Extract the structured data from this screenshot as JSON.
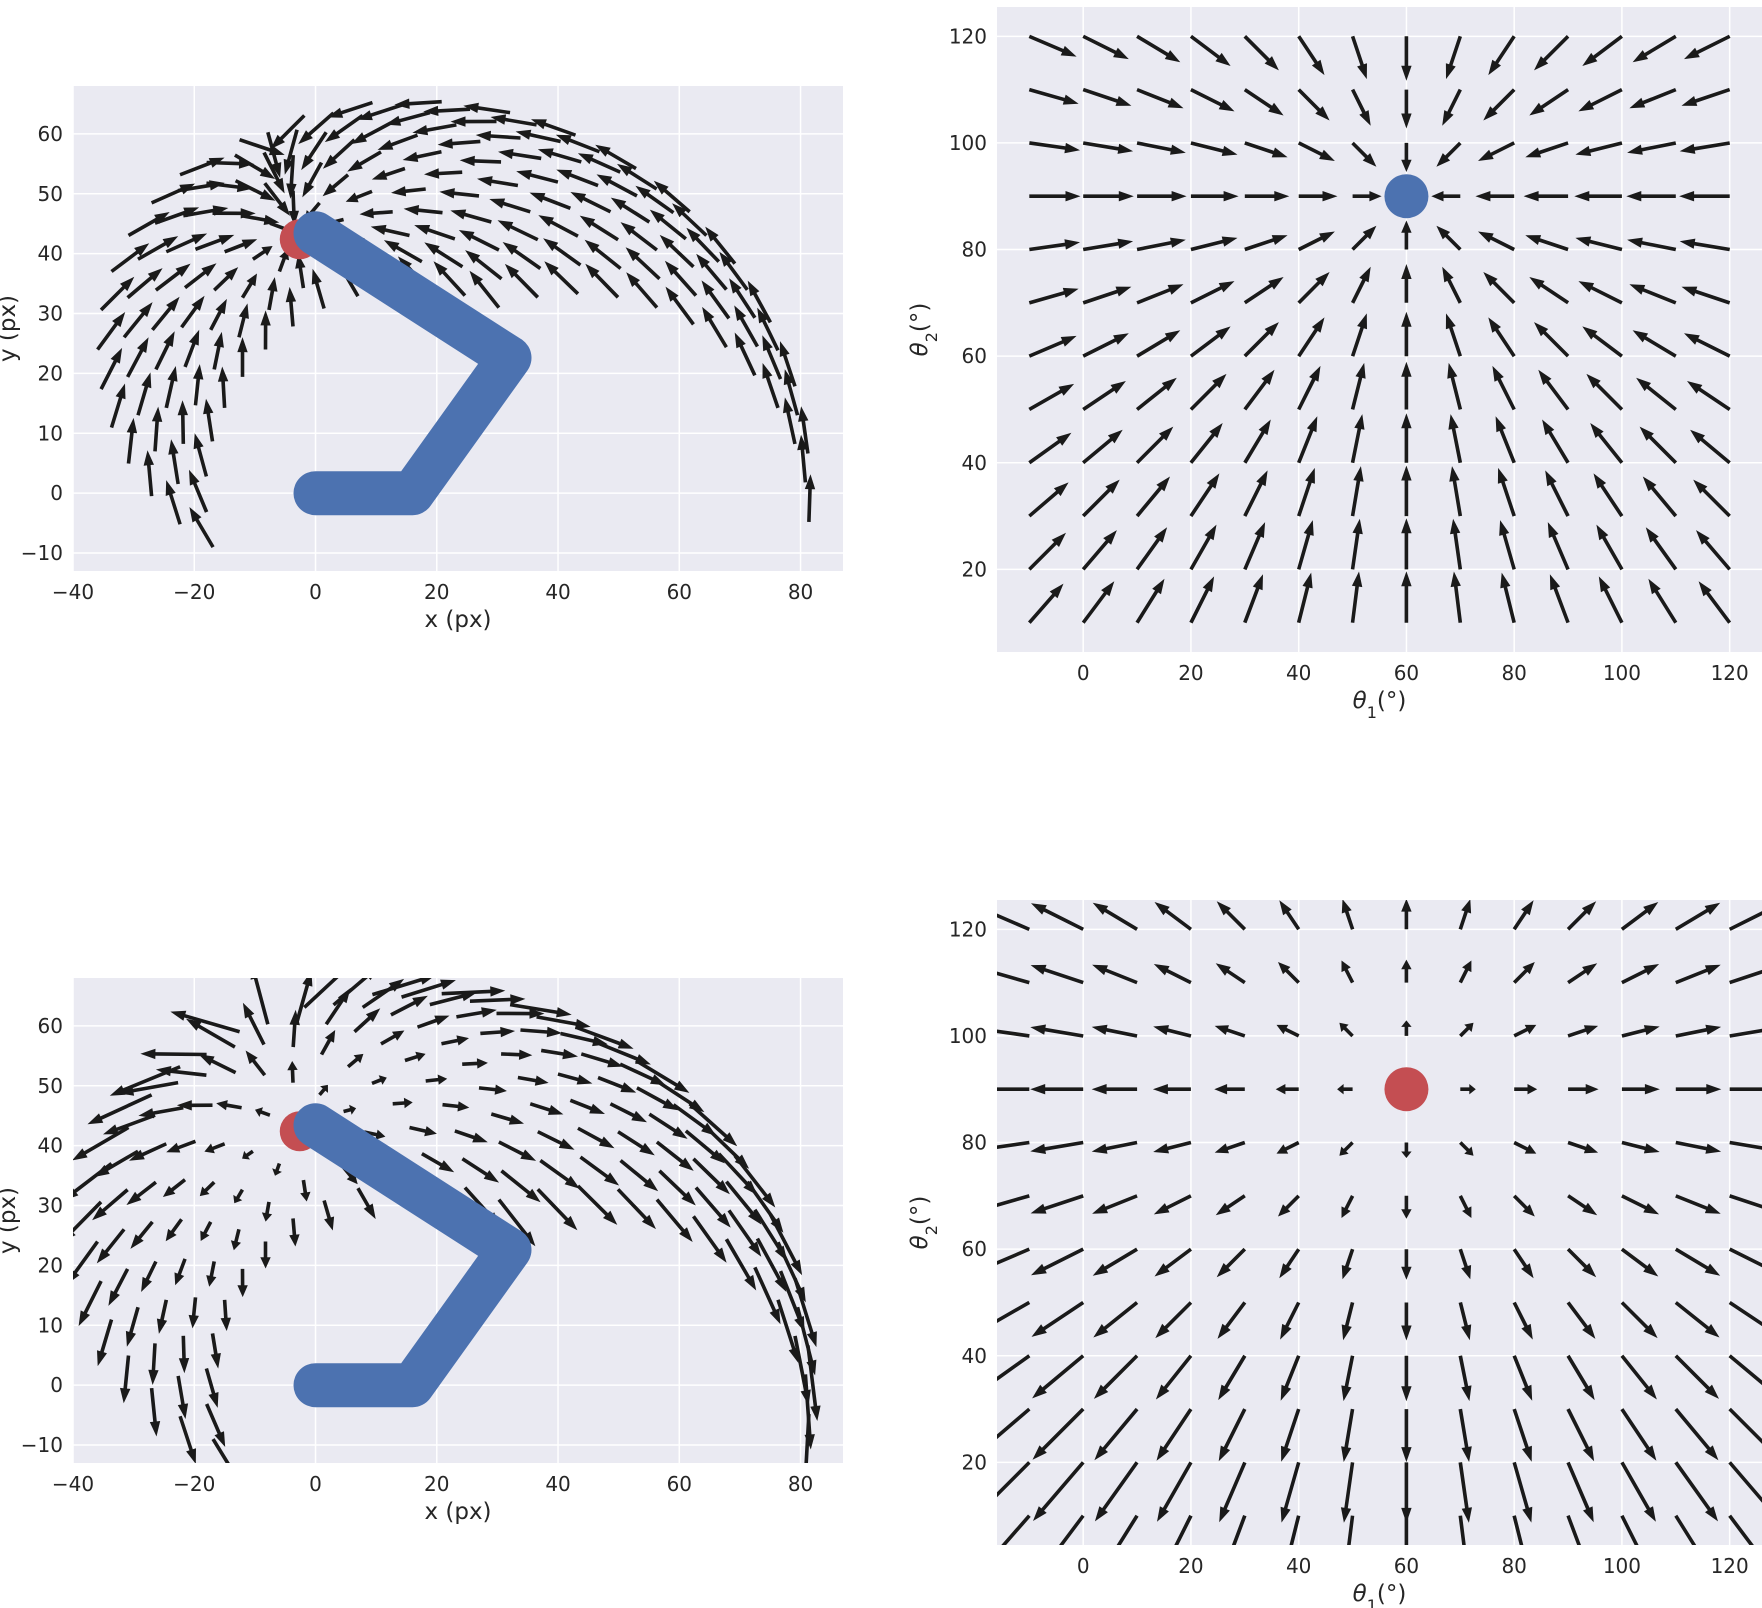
{
  "colors": {
    "background": "#eaeaf2",
    "grid": "#ffffff",
    "arm": "#4c72b0",
    "target": "#c44e52",
    "arrow": "#1a1a1a"
  },
  "chart_data": [
    {
      "id": "top-left",
      "type": "quiver",
      "xlabel": "x (px)",
      "ylabel": "y (px)",
      "xlim": [
        -40,
        87
      ],
      "ylim": [
        -13,
        68
      ],
      "xticks": [
        -40,
        -20,
        0,
        20,
        40,
        60,
        80
      ],
      "yticks": [
        -10,
        0,
        10,
        20,
        30,
        40,
        50,
        60
      ],
      "tick_labels_x": [
        "−40",
        "−20",
        "0",
        "20",
        "40",
        "60",
        "80"
      ],
      "tick_labels_y": [
        "−10",
        "0",
        "10",
        "20",
        "30",
        "40",
        "50",
        "60"
      ],
      "arm": {
        "points": [
          [
            0,
            0
          ],
          [
            16,
            0
          ],
          [
            32,
            22.6
          ],
          [
            0,
            43.4
          ]
        ],
        "color": "#4c72b0"
      },
      "target": {
        "x": -2.6,
        "y": 42.4,
        "color": "#c44e52"
      },
      "field": {
        "mapping": "arm",
        "L1": 16,
        "L2": 27.7,
        "L3": 38.1,
        "goal": [
          60,
          90
        ],
        "mode": "attract"
      }
    },
    {
      "id": "top-right",
      "type": "quiver",
      "xlabel": "θ1(°)",
      "ylabel": "θ2(°)",
      "xlim": [
        -16,
        126
      ],
      "ylim": [
        4.5,
        125.5
      ],
      "xticks": [
        0,
        20,
        40,
        60,
        80,
        100,
        120
      ],
      "yticks": [
        20,
        40,
        60,
        80,
        100,
        120
      ],
      "tick_labels_x": [
        "0",
        "20",
        "40",
        "60",
        "80",
        "100",
        "120"
      ],
      "tick_labels_y": [
        "20",
        "40",
        "60",
        "80",
        "100",
        "120"
      ],
      "target": {
        "x": 60,
        "y": 90,
        "color": "#4c72b0"
      },
      "field": {
        "mapping": "joint",
        "goal": [
          60,
          90
        ],
        "mode": "attract"
      }
    },
    {
      "id": "bottom-left",
      "type": "quiver",
      "xlabel": "x (px)",
      "ylabel": "y (px)",
      "xlim": [
        -40,
        87
      ],
      "ylim": [
        -13,
        68
      ],
      "xticks": [
        -40,
        -20,
        0,
        20,
        40,
        60,
        80
      ],
      "yticks": [
        -10,
        0,
        10,
        20,
        30,
        40,
        50,
        60
      ],
      "tick_labels_x": [
        "−40",
        "−20",
        "0",
        "20",
        "40",
        "60",
        "80"
      ],
      "tick_labels_y": [
        "−10",
        "0",
        "10",
        "20",
        "30",
        "40",
        "50",
        "60"
      ],
      "arm": {
        "points": [
          [
            0,
            0
          ],
          [
            16,
            0
          ],
          [
            32,
            22.6
          ],
          [
            0,
            43.4
          ]
        ],
        "color": "#4c72b0"
      },
      "target": {
        "x": -2.6,
        "y": 42.4,
        "color": "#c44e52"
      },
      "field": {
        "mapping": "arm",
        "L1": 16,
        "L2": 27.7,
        "L3": 38.1,
        "goal": [
          60,
          90
        ],
        "mode": "repel"
      }
    },
    {
      "id": "bottom-right",
      "type": "quiver",
      "xlabel": "θ1(°)",
      "ylabel": "θ2(°)",
      "xlim": [
        -16,
        126
      ],
      "ylim": [
        4.5,
        125.5
      ],
      "xticks": [
        0,
        20,
        40,
        60,
        80,
        100,
        120
      ],
      "yticks": [
        20,
        40,
        60,
        80,
        100,
        120
      ],
      "tick_labels_x": [
        "0",
        "20",
        "40",
        "60",
        "80",
        "100",
        "120"
      ],
      "tick_labels_y": [
        "20",
        "40",
        "60",
        "80",
        "100",
        "120"
      ],
      "target": {
        "x": 60,
        "y": 90,
        "color": "#c44e52"
      },
      "field": {
        "mapping": "joint",
        "goal": [
          60,
          90
        ],
        "mode": "repel"
      }
    }
  ]
}
